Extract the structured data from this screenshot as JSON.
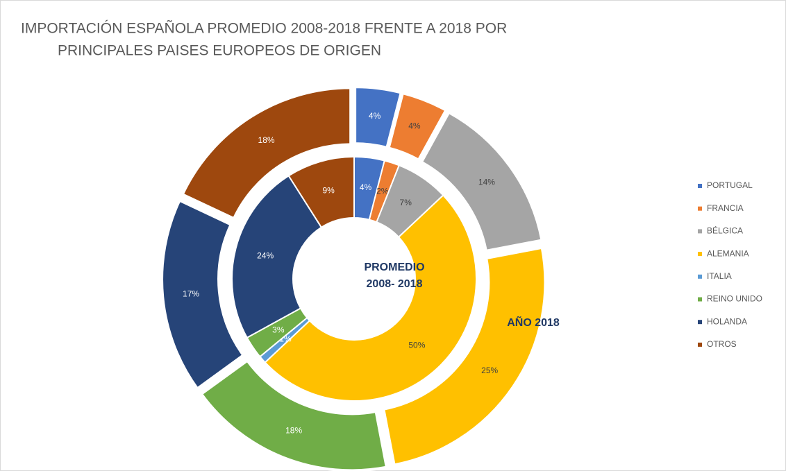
{
  "chart_data": {
    "type": "donut",
    "title": [
      "IMPORTACIÓN ESPAÑOLA PROMEDIO  2008-2018 FRENTE A  2018 POR",
      "PRINCIPALES PAISES EUROPEOS DE ORIGEN"
    ],
    "categories": [
      "PORTUGAL",
      "FRANCIA",
      "BÉLGICA",
      "ALEMANIA",
      "ITALIA",
      "REINO UNIDO",
      "HOLANDA",
      "OTROS"
    ],
    "colors": [
      "#4472c4",
      "#ed7d31",
      "#a5a5a5",
      "#ffc000",
      "#5b9bd5",
      "#70ad47",
      "#264478",
      "#9e480e"
    ],
    "series": [
      {
        "name": "PROMEDIO 2008- 2018",
        "values": [
          4,
          2,
          7,
          50,
          1,
          3,
          24,
          9
        ],
        "value_labels": [
          "4%",
          "2%",
          "7%",
          "50%",
          "1%",
          "3%",
          "24%",
          "9%"
        ]
      },
      {
        "name": "AÑO 2018",
        "values": [
          4,
          4,
          14,
          25,
          0,
          18,
          17,
          18
        ],
        "value_labels": [
          "4%",
          "4%",
          "14%",
          "25%",
          null,
          "18%",
          "17%",
          "18%"
        ]
      }
    ],
    "legend": "right"
  }
}
